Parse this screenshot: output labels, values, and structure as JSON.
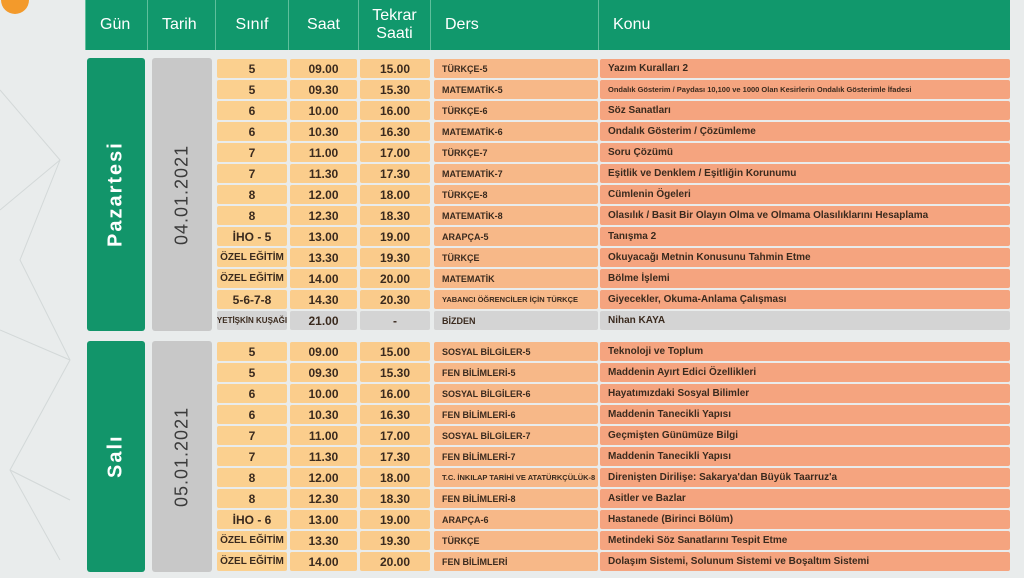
{
  "header": {
    "columns": [
      "Gün",
      "Tarih",
      "Sınıf",
      "Saat",
      "Tekrar Saati",
      "Ders",
      "Konu"
    ]
  },
  "days": [
    {
      "day": "Pazartesi",
      "date": "04.01.2021",
      "rows": [
        [
          "5",
          "09.00",
          "15.00",
          "TÜRKÇE-5",
          "Yazım Kuralları 2"
        ],
        [
          "5",
          "09.30",
          "15.30",
          "MATEMATİK-5",
          "Ondalık Gösterim / Paydası 10,100 ve 1000 Olan Kesirlerin Ondalık Gösterimle İfadesi"
        ],
        [
          "6",
          "10.00",
          "16.00",
          "TÜRKÇE-6",
          "Söz Sanatları"
        ],
        [
          "6",
          "10.30",
          "16.30",
          "MATEMATİK-6",
          "Ondalık Gösterim / Çözümleme"
        ],
        [
          "7",
          "11.00",
          "17.00",
          "TÜRKÇE-7",
          "Soru Çözümü"
        ],
        [
          "7",
          "11.30",
          "17.30",
          "MATEMATİK-7",
          "Eşitlik ve Denklem / Eşitliğin Korunumu"
        ],
        [
          "8",
          "12.00",
          "18.00",
          "TÜRKÇE-8",
          "Cümlenin Ögeleri"
        ],
        [
          "8",
          "12.30",
          "18.30",
          "MATEMATİK-8",
          "Olasılık / Basit Bir Olayın Olma ve Olmama Olasılıklarını Hesaplama"
        ],
        [
          "İHO - 5",
          "13.00",
          "19.00",
          "ARAPÇA-5",
          "Tanışma 2"
        ],
        [
          "ÖZEL EĞİTİM",
          "13.30",
          "19.30",
          "TÜRKÇE",
          "Okuyacağı Metnin Konusunu Tahmin Etme"
        ],
        [
          "ÖZEL EĞİTİM",
          "14.00",
          "20.00",
          "MATEMATİK",
          "Bölme İşlemi"
        ],
        [
          "5-6-7-8",
          "14.30",
          "20.30",
          "YABANCI ÖĞRENCİLER İÇİN TÜRKÇE",
          "Giyecekler, Okuma-Anlama Çalışması"
        ],
        [
          "YETİŞKİN KUŞAĞI",
          "21.00",
          "-",
          "BİZDEN",
          "Nihan KAYA"
        ]
      ]
    },
    {
      "day": "Salı",
      "date": "05.01.2021",
      "rows": [
        [
          "5",
          "09.00",
          "15.00",
          "SOSYAL BİLGİLER-5",
          "Teknoloji ve Toplum"
        ],
        [
          "5",
          "09.30",
          "15.30",
          "FEN BİLİMLERİ-5",
          "Maddenin Ayırt Edici Özellikleri"
        ],
        [
          "6",
          "10.00",
          "16.00",
          "SOSYAL BİLGİLER-6",
          "Hayatımızdaki Sosyal Bilimler"
        ],
        [
          "6",
          "10.30",
          "16.30",
          "FEN BİLİMLERİ-6",
          "Maddenin Tanecikli Yapısı"
        ],
        [
          "7",
          "11.00",
          "17.00",
          "SOSYAL BİLGİLER-7",
          "Geçmişten Günümüze Bilgi"
        ],
        [
          "7",
          "11.30",
          "17.30",
          "FEN BİLİMLERİ-7",
          "Maddenin Tanecikli Yapısı"
        ],
        [
          "8",
          "12.00",
          "18.00",
          "T.C. İNKILAP TARİHİ VE ATATÜRKÇÜLÜK-8",
          "Direnişten Dirilişe: Sakarya'dan Büyük Taarruz'a"
        ],
        [
          "8",
          "12.30",
          "18.30",
          "FEN BİLİMLERİ-8",
          "Asitler ve Bazlar"
        ],
        [
          "İHO - 6",
          "13.00",
          "19.00",
          "ARAPÇA-6",
          "Hastanede (Birinci Bölüm)"
        ],
        [
          "ÖZEL EĞİTİM",
          "13.30",
          "19.30",
          "TÜRKÇE",
          "Metindeki Söz Sanatlarını Tespit Etme"
        ],
        [
          "ÖZEL EĞİTİM",
          "14.00",
          "20.00",
          "FEN BİLİMLERİ",
          "Dolaşım Sistemi, Solunum Sistemi ve Boşaltım Sistemi"
        ]
      ]
    }
  ]
}
